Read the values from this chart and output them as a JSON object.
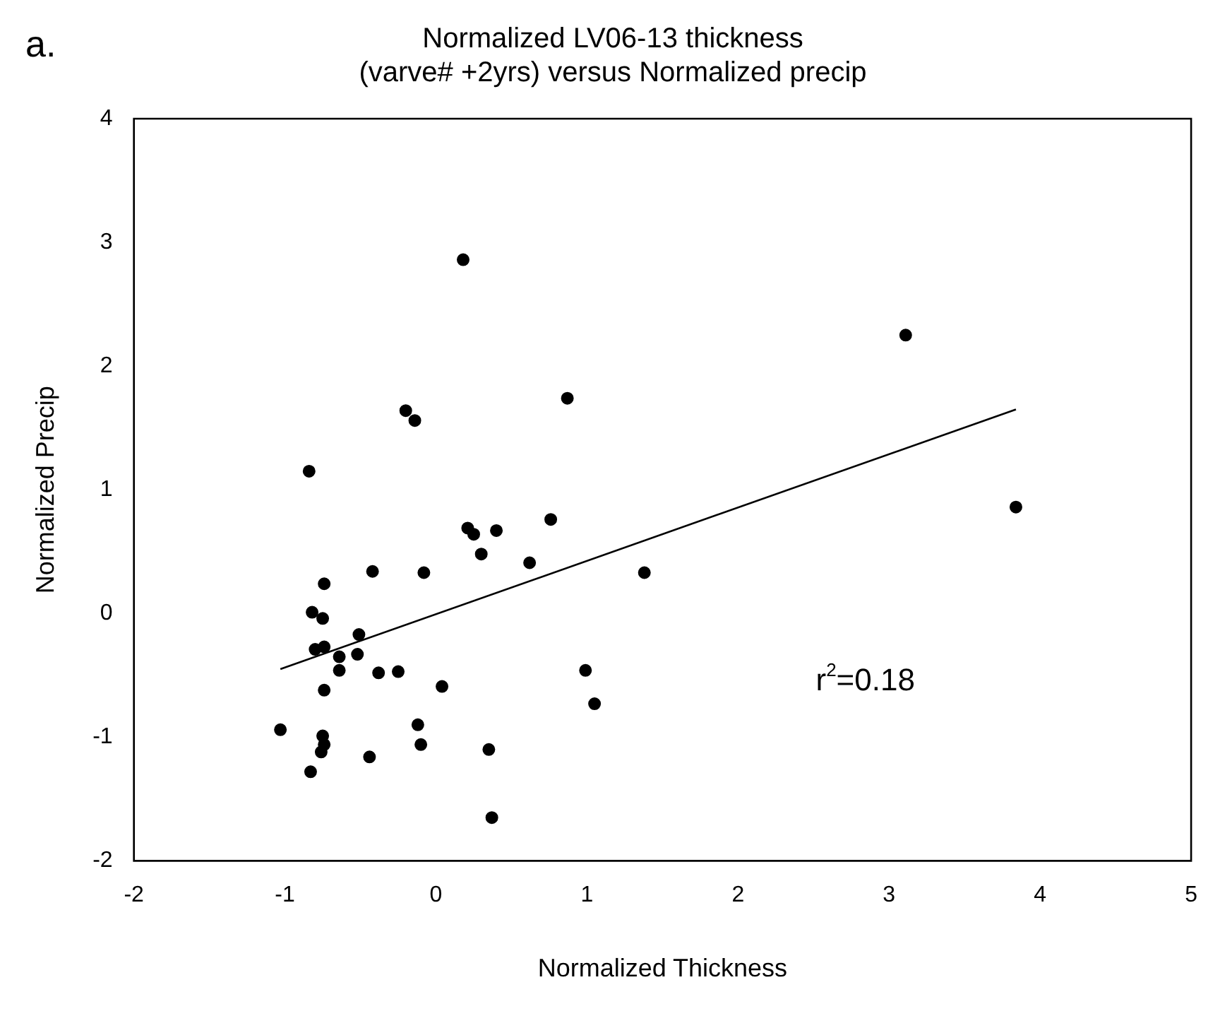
{
  "chart_data": {
    "type": "scatter",
    "title": "Normalized LV06-13 thickness\n(varve# +2yrs) versus Normalized precip",
    "xlabel": "Normalized Thickness",
    "ylabel": "Normalized Precip",
    "annotations": [
      "a.",
      "r$^{2}$=0.18"
    ],
    "series": [
      {
        "color": "#000000",
        "marker": "circle",
        "x": [
          -0.2,
          -0.14,
          0.87,
          -0.84,
          0.21,
          0.25,
          0.4,
          0.76,
          0.3,
          0.62,
          -0.42,
          -0.08,
          1.38,
          -0.74,
          -0.82,
          -0.75,
          -0.51,
          -0.8,
          -0.74,
          -0.64,
          -0.52,
          -0.64,
          -0.38,
          -0.25,
          0.99,
          -0.74,
          0.04,
          1.05,
          -1.03,
          -0.12,
          -0.75,
          -0.74,
          -0.76,
          -0.1,
          -0.44,
          0.35,
          -0.83,
          0.37,
          0.18,
          3.11,
          3.84
        ],
        "values": [
          1.64,
          1.56,
          1.74,
          1.15,
          0.69,
          0.64,
          0.67,
          0.76,
          0.48,
          0.41,
          0.34,
          0.33,
          0.33,
          0.24,
          0.01,
          -0.04,
          -0.17,
          -0.29,
          -0.27,
          -0.35,
          -0.33,
          -0.46,
          -0.48,
          -0.47,
          -0.46,
          -0.62,
          -0.59,
          -0.73,
          -0.94,
          -0.9,
          -0.99,
          -1.06,
          -1.12,
          -1.06,
          -1.16,
          -1.1,
          -1.28,
          -1.65,
          2.86,
          2.25,
          0.86
        ]
      },
      {
        "type": "line",
        "color": "#000000",
        "marker": "none",
        "x": [
          -1.03,
          3.84
        ],
        "values": [
          -0.45,
          1.65
        ]
      }
    ],
    "xlim": [
      -2,
      5
    ],
    "xticks": [
      -2,
      -1,
      0,
      1,
      2,
      3,
      4,
      5
    ],
    "ylim": [
      -2,
      4
    ],
    "yticks": [
      -2,
      -1,
      0,
      1,
      2,
      3,
      4
    ],
    "grid": false,
    "legend": false
  }
}
